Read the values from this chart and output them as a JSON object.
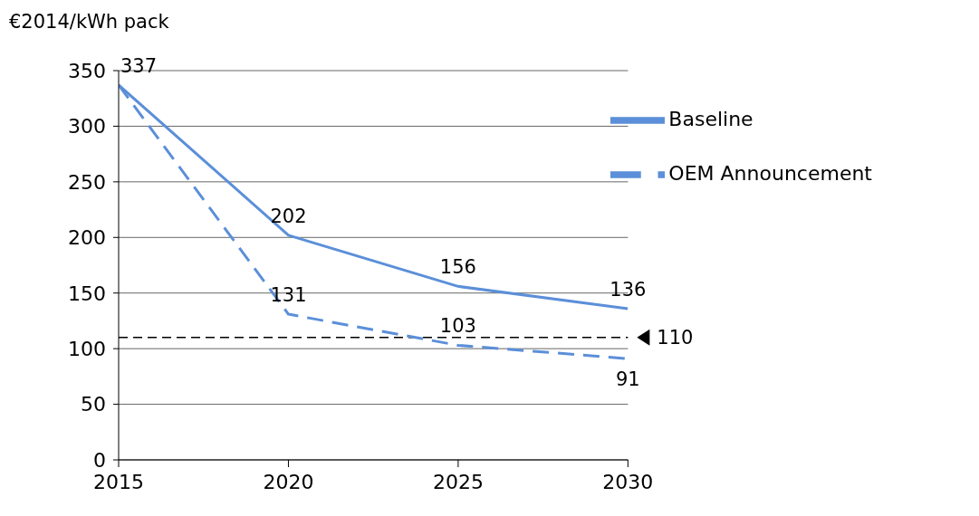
{
  "chart_data": {
    "type": "line",
    "ylabel": "€2014/kWh pack",
    "x": [
      2015,
      2020,
      2025,
      2030
    ],
    "series": [
      {
        "name": "Baseline",
        "color": "#5b8fd9",
        "line_style": "solid",
        "values": [
          337,
          202,
          156,
          136
        ],
        "value_labels": [
          "337",
          "202",
          "156",
          "136"
        ]
      },
      {
        "name": "OEM Announcement",
        "color": "#5b8fd9",
        "line_style": "dashed",
        "values": [
          337,
          131,
          103,
          91
        ],
        "value_labels": [
          null,
          "131",
          "103",
          "91"
        ]
      }
    ],
    "xlim": [
      2015,
      2030
    ],
    "xticks": [
      2015,
      2020,
      2025,
      2030
    ],
    "ylim": [
      0,
      350
    ],
    "yticks": [
      0,
      50,
      100,
      150,
      200,
      250,
      300,
      350
    ],
    "ref_lines": [
      {
        "axis": "y",
        "value": 110,
        "label": "110",
        "color": "#000000",
        "line_style": "dashed"
      }
    ],
    "grid": "y",
    "legend": "top right",
    "marker": "none"
  }
}
